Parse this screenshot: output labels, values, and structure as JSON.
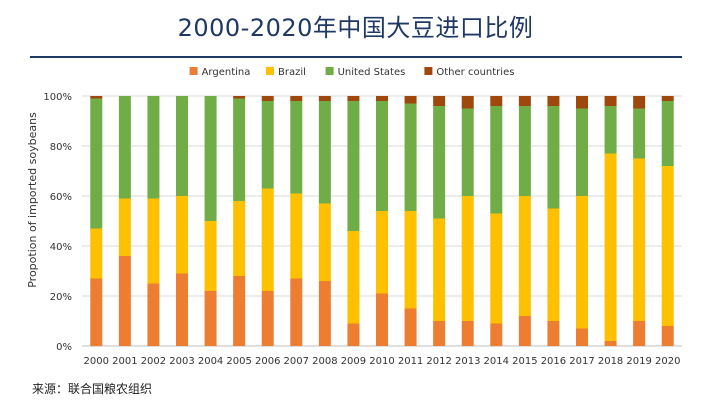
{
  "title": "2000-2020年中国大豆进口比例",
  "source": "来源：联合国粮农组织",
  "chart_data": {
    "type": "bar",
    "stacked": true,
    "percent": true,
    "categories": [
      "2000",
      "2001",
      "2002",
      "2003",
      "2004",
      "2005",
      "2006",
      "2007",
      "2008",
      "2009",
      "2010",
      "2011",
      "2012",
      "2013",
      "2014",
      "2015",
      "2016",
      "2017",
      "2018",
      "2019",
      "2020"
    ],
    "series": [
      {
        "name": "Argentina",
        "color": "#ed7d31",
        "values": [
          27,
          36,
          25,
          29,
          22,
          28,
          22,
          27,
          26,
          9,
          21,
          15,
          10,
          10,
          9,
          12,
          10,
          7,
          2,
          10,
          8
        ]
      },
      {
        "name": "Brazil",
        "color": "#ffc000",
        "values": [
          20,
          23,
          34,
          31,
          28,
          30,
          41,
          34,
          31,
          37,
          33,
          39,
          41,
          50,
          44,
          48,
          45,
          53,
          75,
          65,
          64
        ]
      },
      {
        "name": "United States",
        "color": "#70ad47",
        "values": [
          52,
          41,
          41,
          40,
          50,
          41,
          35,
          37,
          41,
          52,
          44,
          43,
          45,
          35,
          43,
          36,
          41,
          35,
          19,
          20,
          26
        ]
      },
      {
        "name": "Other countries",
        "color": "#9e480e",
        "values": [
          1,
          0,
          0,
          0,
          0,
          1,
          2,
          2,
          2,
          2,
          2,
          3,
          4,
          5,
          4,
          4,
          4,
          5,
          4,
          5,
          2
        ]
      }
    ],
    "ylabel": "Propotion of imported soybeans",
    "xlabel": "",
    "ylim": [
      0,
      100
    ],
    "yticks": [
      "0%",
      "20%",
      "40%",
      "60%",
      "80%",
      "100%"
    ],
    "legend_position": "top"
  }
}
